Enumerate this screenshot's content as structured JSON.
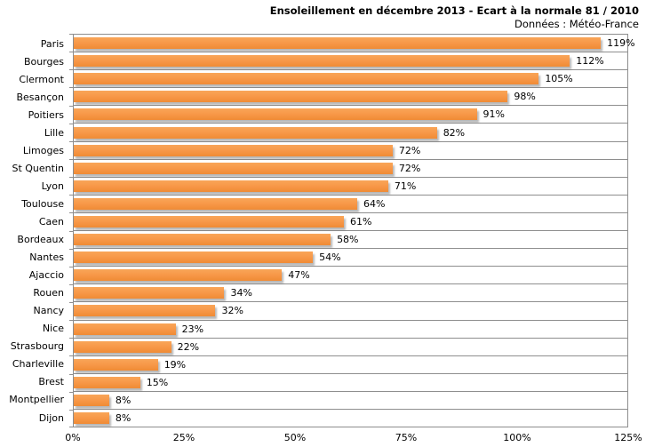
{
  "chart_data": {
    "type": "bar",
    "orientation": "horizontal",
    "title": "Ensoleillement en décembre 2013 - Ecart à la normale 81 / 2010",
    "subtitle": "Données : Météo-France",
    "categories": [
      "Paris",
      "Bourges",
      "Clermont",
      "Besançon",
      "Poitiers",
      "Lille",
      "Limoges",
      "St Quentin",
      "Lyon",
      "Toulouse",
      "Caen",
      "Bordeaux",
      "Nantes",
      "Ajaccio",
      "Rouen",
      "Nancy",
      "Nice",
      "Strasbourg",
      "Charleville",
      "Brest",
      "Montpellier",
      "Dijon"
    ],
    "values": [
      119,
      112,
      105,
      98,
      91,
      82,
      72,
      72,
      71,
      64,
      61,
      58,
      54,
      47,
      34,
      32,
      23,
      22,
      19,
      15,
      8,
      8
    ],
    "value_labels": [
      "119%",
      "112%",
      "105%",
      "98%",
      "91%",
      "82%",
      "72%",
      "72%",
      "71%",
      "64%",
      "61%",
      "58%",
      "54%",
      "47%",
      "34%",
      "32%",
      "23%",
      "22%",
      "19%",
      "15%",
      "8%",
      "8%"
    ],
    "xlabel": "",
    "ylabel": "",
    "xlim": [
      0,
      125
    ],
    "x_ticks": [
      "0%",
      "25%",
      "50%",
      "75%",
      "100%",
      "125%"
    ],
    "x_tick_values": [
      0,
      25,
      50,
      75,
      100,
      125
    ],
    "legend": "none",
    "grid": "horizontal-row-separators",
    "colors": {
      "bar": "#F79646",
      "gridline": "#8E8E8E",
      "plot_border": "#8E8E8E",
      "text": "#000000",
      "background": "#FFFFFF",
      "bar_shadow": "#7D7D7D"
    }
  }
}
